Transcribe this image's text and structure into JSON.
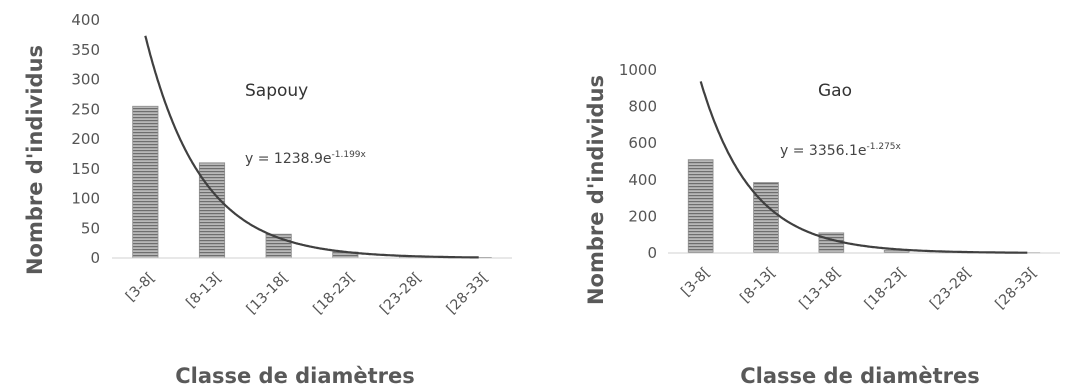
{
  "chart_data": [
    {
      "type": "bar",
      "title": "Sapouy",
      "xlabel": "Classe de diamètres",
      "ylabel": "Nombre d'individus",
      "categories": [
        "[3-8[",
        "[8-13[",
        "[13-18[",
        "[18-23[",
        "[23-28[",
        "[28-33["
      ],
      "values": [
        255,
        160,
        40,
        10,
        3,
        1
      ],
      "ylim": [
        0,
        400
      ],
      "yticks": [
        0,
        50,
        100,
        150,
        200,
        250,
        300,
        350,
        400
      ],
      "trendline": {
        "type": "exponential",
        "a": 1238.9,
        "b": -1.199,
        "equation_prefix": "y = 1238.9e",
        "equation_exponent": "-1.199x"
      },
      "grid": false,
      "bar_color": "#8c8c8c",
      "curve_color": "#404040"
    },
    {
      "type": "bar",
      "title": "Gao",
      "xlabel": "Classe de diamètres",
      "ylabel": "Nombre d'individus",
      "categories": [
        "[3-8[",
        "[8-13[",
        "[13-18[",
        "[18-23[",
        "[23-28[",
        "[28-33["
      ],
      "values": [
        510,
        385,
        110,
        15,
        5,
        2
      ],
      "ylim": [
        0,
        1000
      ],
      "yticks": [
        0,
        200,
        400,
        600,
        800,
        1000
      ],
      "trendline": {
        "type": "exponential",
        "a": 3356.1,
        "b": -1.275,
        "equation_prefix": "y = 3356.1e",
        "equation_exponent": "-1.275x"
      },
      "grid": false,
      "bar_color": "#8c8c8c",
      "curve_color": "#404040"
    }
  ]
}
